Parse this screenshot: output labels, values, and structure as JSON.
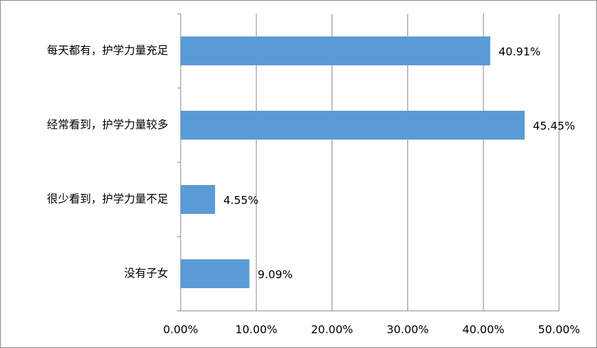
{
  "chart_data": {
    "type": "hbar",
    "categories": [
      "每天都有，护学力量充足",
      "经常看到，护学力量较多",
      "很少看到，护学力量不足",
      "没有子女"
    ],
    "values": [
      40.91,
      45.45,
      4.55,
      9.09
    ],
    "value_labels": [
      "40.91%",
      "45.45%",
      "4.55%",
      "9.09%"
    ],
    "color": "#5b9bd5",
    "xlim": [
      0,
      50
    ],
    "xticks": [
      {
        "value": 0,
        "label": "0.00%"
      },
      {
        "value": 10,
        "label": "10.00%"
      },
      {
        "value": 20,
        "label": "20.00%"
      },
      {
        "value": 30,
        "label": "30.00%"
      },
      {
        "value": 40,
        "label": "40.00%"
      },
      {
        "value": 50,
        "label": "50.00%"
      }
    ],
    "grid": true
  }
}
